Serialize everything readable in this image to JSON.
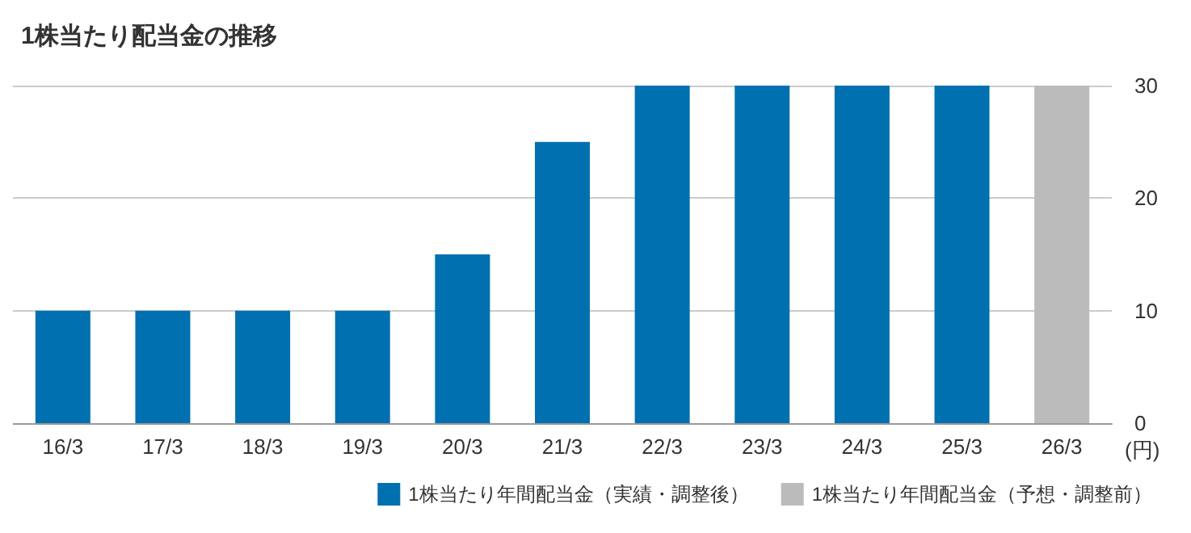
{
  "chart_data": {
    "type": "bar",
    "title": "1株当たり配当金の推移",
    "ylabel": "(円)",
    "categories": [
      "16/3",
      "17/3",
      "18/3",
      "19/3",
      "20/3",
      "21/3",
      "22/3",
      "23/3",
      "24/3",
      "25/3",
      "26/3"
    ],
    "series": [
      {
        "name": "1株当たり年間配当金（実績・調整後）",
        "color": "#0070b0",
        "values": [
          10,
          10,
          10,
          10,
          15,
          25,
          30,
          30,
          30,
          30,
          null
        ]
      },
      {
        "name": "1株当たり年間配当金（予想・調整前）",
        "color": "#bbbbbb",
        "values": [
          null,
          null,
          null,
          null,
          null,
          null,
          null,
          null,
          null,
          null,
          30
        ]
      }
    ],
    "stacked": true,
    "ylim": [
      0,
      30
    ],
    "yticks": [
      0,
      10,
      20,
      30
    ],
    "grid": "y",
    "legend": "bottom"
  }
}
